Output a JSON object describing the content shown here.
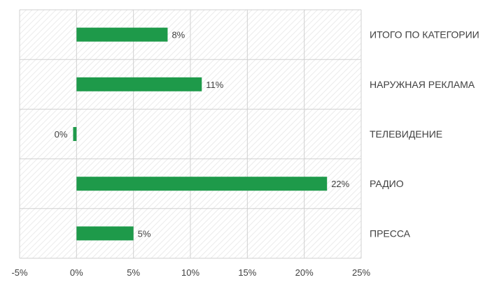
{
  "chart_data": {
    "type": "bar",
    "orientation": "horizontal",
    "categories": [
      "ИТОГО ПО КАТЕГОРИИ",
      "НАРУЖНАЯ РЕКЛАМА",
      "ТЕЛЕВИДЕНИЕ",
      "РАДИО",
      "ПРЕССА"
    ],
    "values": [
      8,
      11,
      -0.3,
      22,
      5
    ],
    "data_labels": [
      "8%",
      "11%",
      "0%",
      "22%",
      "5%"
    ],
    "x_ticks": [
      "-5%",
      "0%",
      "5%",
      "10%",
      "15%",
      "20%",
      "25%"
    ],
    "xlim": [
      -5,
      25
    ],
    "title": "",
    "xlabel": "",
    "ylabel": "",
    "grid": true,
    "category_label_position": "right",
    "colors": {
      "bar": "#1e9a4a",
      "grid": "#d0d0d0",
      "hatch": "#e6e6e6"
    }
  }
}
